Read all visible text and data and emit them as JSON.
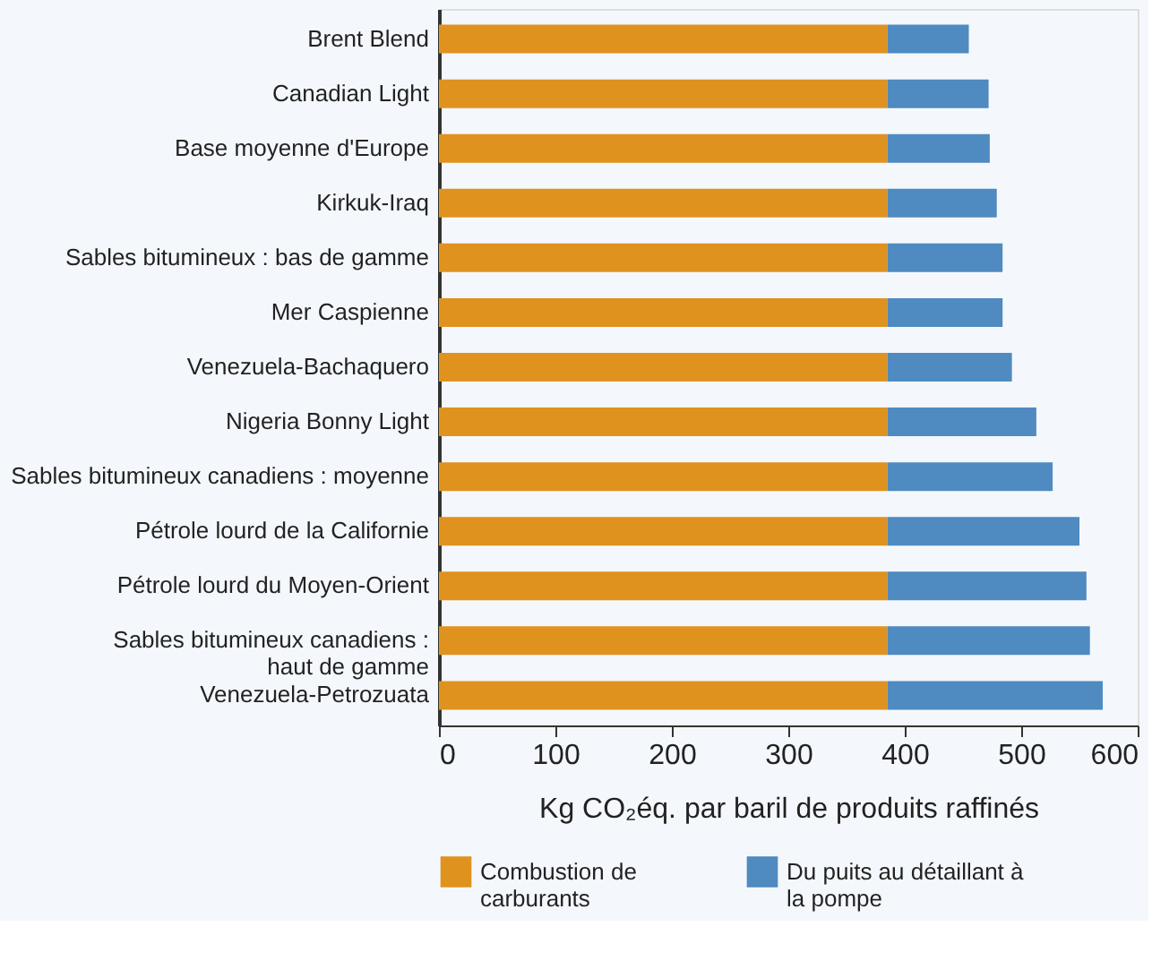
{
  "chart_data": {
    "type": "bar",
    "orientation": "horizontal",
    "stacked": true,
    "xlabel": "Kg CO₂éq. par baril de produits raffinés",
    "categories": [
      "Brent Blend",
      "Canadian Light",
      "Base moyenne d'Europe",
      "Kirkuk-Iraq",
      "Sables bitumineux : bas de gamme",
      "Mer Caspienne",
      "Venezuela-Bachaquero",
      "Nigeria Bonny Light",
      "Sables bitumineux canadiens : moyenne",
      "Pétrole lourd de la Californie",
      "Pétrole lourd du Moyen-Orient",
      "Sables bitumineux canadiens :\nhaut de gamme",
      "Venezuela-Petrozuata"
    ],
    "series": [
      {
        "name": "Combustion de\ncarburants",
        "color": "#e0921f",
        "values": [
          385,
          385,
          385,
          385,
          385,
          385,
          385,
          385,
          385,
          385,
          385,
          385,
          385
        ]
      },
      {
        "name": "Du puits au détaillant à\nla pompe",
        "color": "#4f8ac0",
        "values": [
          70,
          87,
          88,
          94,
          99,
          99,
          107,
          128,
          142,
          165,
          171,
          174,
          185
        ]
      }
    ],
    "xlim": [
      0,
      600
    ],
    "xticks": [
      0,
      100,
      200,
      300,
      400,
      500,
      600
    ],
    "grid": false,
    "legend": "bottom"
  }
}
